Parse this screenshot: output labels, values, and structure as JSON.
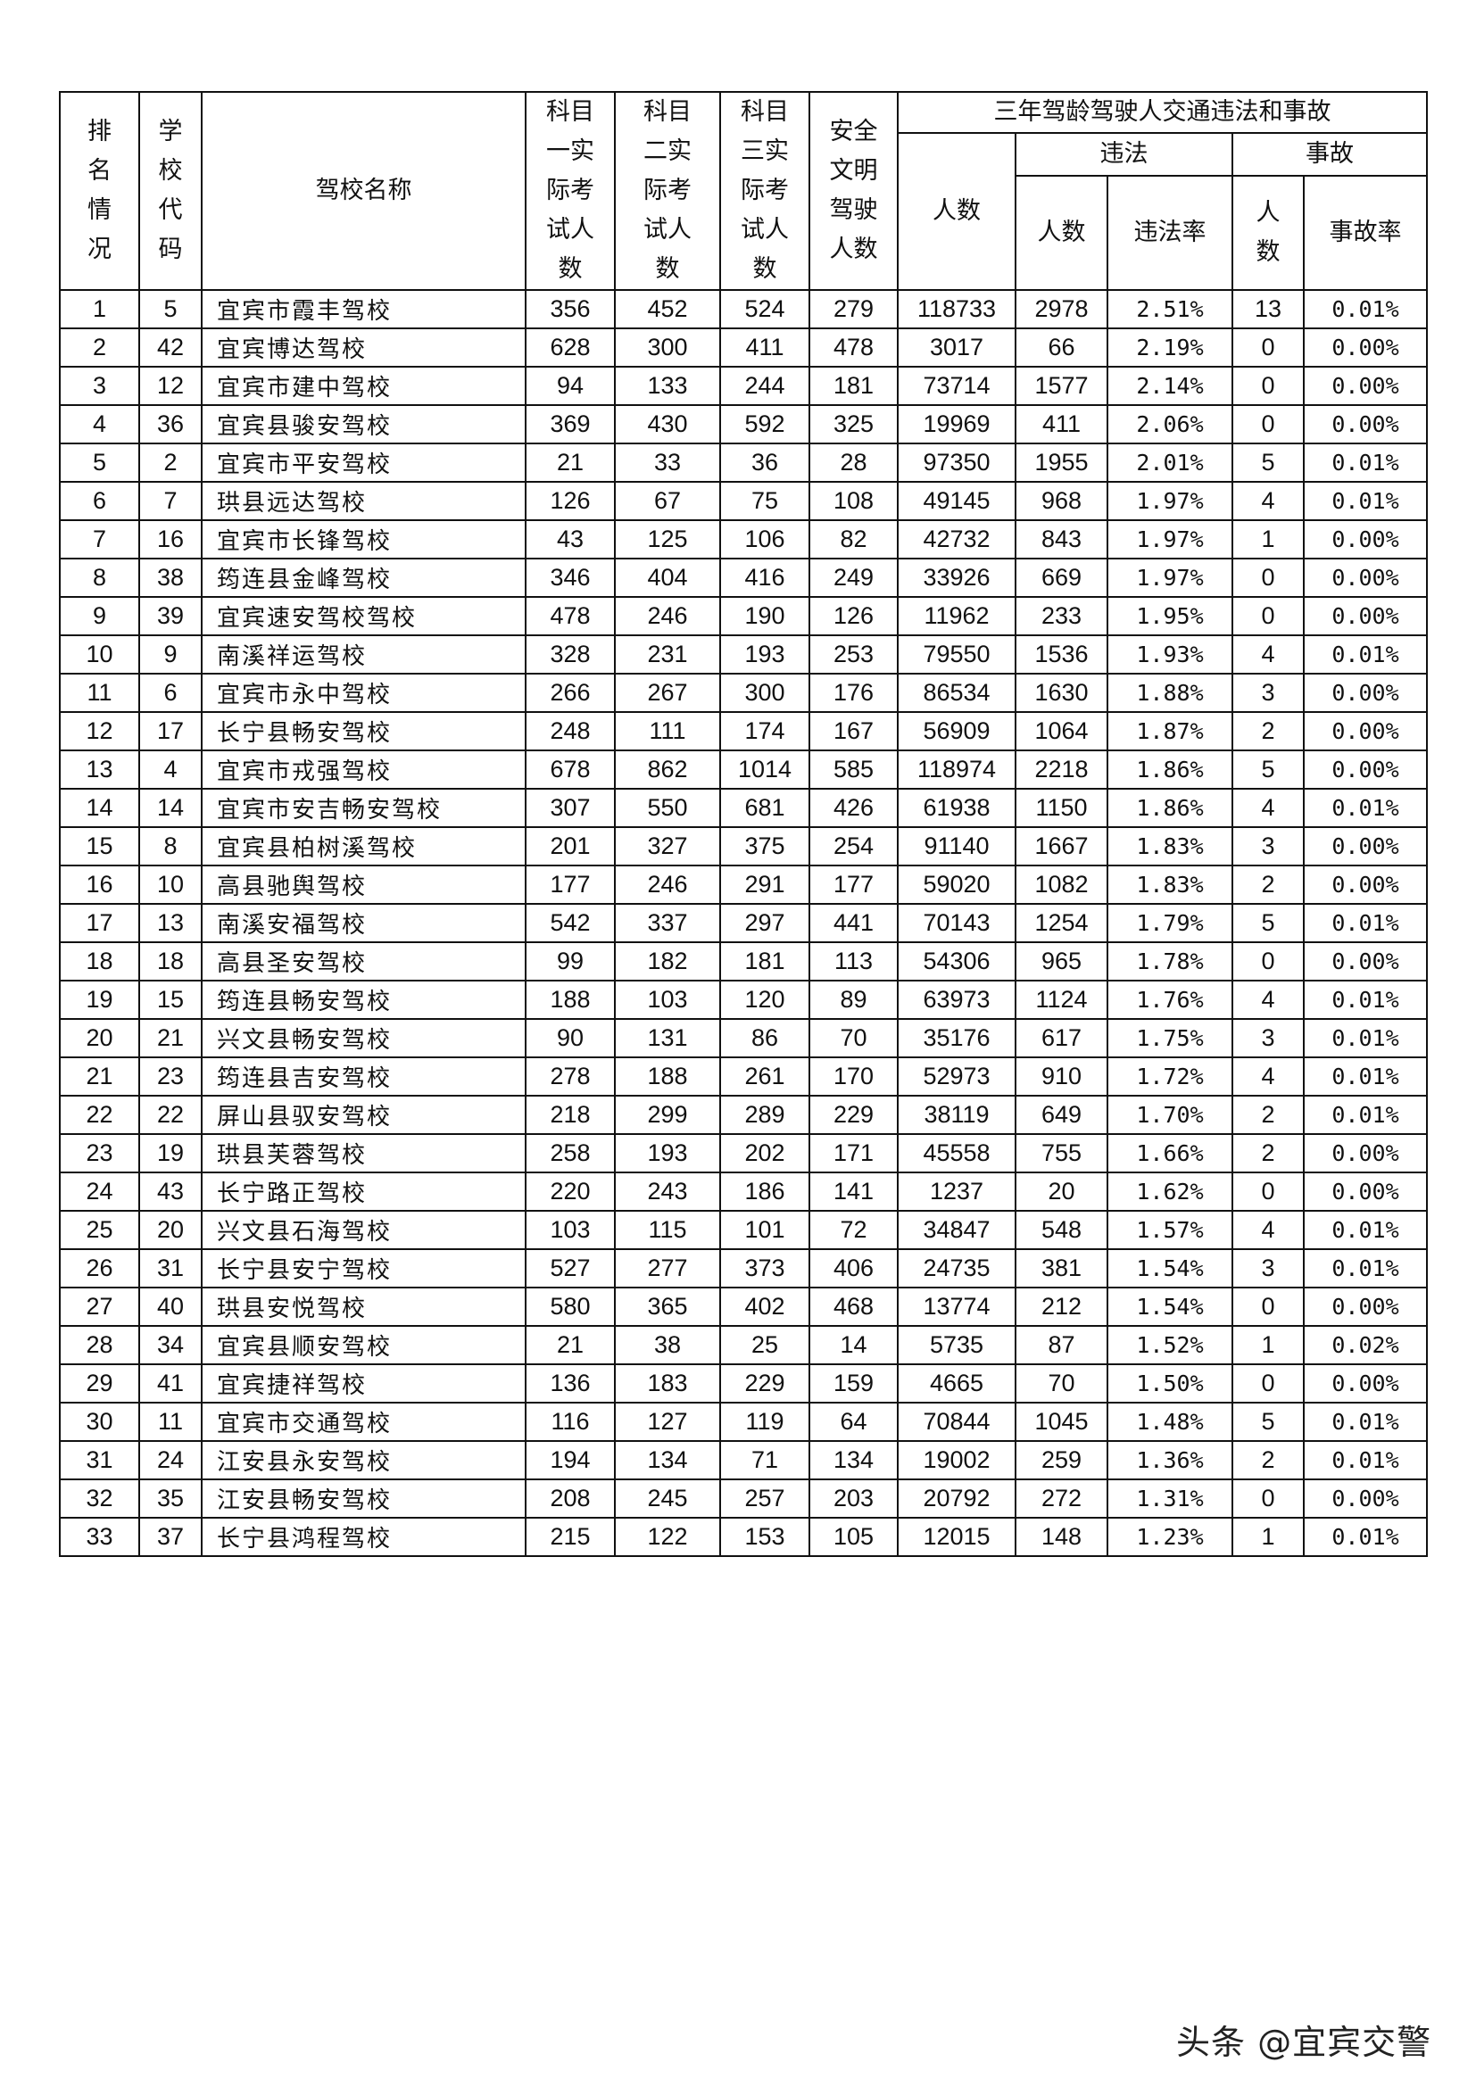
{
  "headers": {
    "rank": "排名情况",
    "code": "学校代码",
    "name": "驾校名称",
    "subject1": "科目一实际考试人数",
    "subject2": "科目二实际考试人数",
    "subject3": "科目三实际考试人数",
    "safe": "安全文明驾驶人数",
    "group": "三年驾龄驾驶人交通违法和事故",
    "people": "人数",
    "violation": "违法",
    "accident": "事故",
    "violation_count": "人数",
    "violation_rate": "违法率",
    "accident_count": "人数",
    "accident_rate": "事故率"
  },
  "rows": [
    [
      "1",
      "5",
      "宜宾市霞丰驾校",
      "356",
      "452",
      "524",
      "279",
      "118733",
      "2978",
      "2.51%",
      "13",
      "0.01%"
    ],
    [
      "2",
      "42",
      "宜宾博达驾校",
      "628",
      "300",
      "411",
      "478",
      "3017",
      "66",
      "2.19%",
      "0",
      "0.00%"
    ],
    [
      "3",
      "12",
      "宜宾市建中驾校",
      "94",
      "133",
      "244",
      "181",
      "73714",
      "1577",
      "2.14%",
      "0",
      "0.00%"
    ],
    [
      "4",
      "36",
      "宜宾县骏安驾校",
      "369",
      "430",
      "592",
      "325",
      "19969",
      "411",
      "2.06%",
      "0",
      "0.00%"
    ],
    [
      "5",
      "2",
      "宜宾市平安驾校",
      "21",
      "33",
      "36",
      "28",
      "97350",
      "1955",
      "2.01%",
      "5",
      "0.01%"
    ],
    [
      "6",
      "7",
      "珙县远达驾校",
      "126",
      "67",
      "75",
      "108",
      "49145",
      "968",
      "1.97%",
      "4",
      "0.01%"
    ],
    [
      "7",
      "16",
      "宜宾市长锋驾校",
      "43",
      "125",
      "106",
      "82",
      "42732",
      "843",
      "1.97%",
      "1",
      "0.00%"
    ],
    [
      "8",
      "38",
      "筠连县金峰驾校",
      "346",
      "404",
      "416",
      "249",
      "33926",
      "669",
      "1.97%",
      "0",
      "0.00%"
    ],
    [
      "9",
      "39",
      "宜宾速安驾校驾校",
      "478",
      "246",
      "190",
      "126",
      "11962",
      "233",
      "1.95%",
      "0",
      "0.00%"
    ],
    [
      "10",
      "9",
      "南溪祥运驾校",
      "328",
      "231",
      "193",
      "253",
      "79550",
      "1536",
      "1.93%",
      "4",
      "0.01%"
    ],
    [
      "11",
      "6",
      "宜宾市永中驾校",
      "266",
      "267",
      "300",
      "176",
      "86534",
      "1630",
      "1.88%",
      "3",
      "0.00%"
    ],
    [
      "12",
      "17",
      "长宁县畅安驾校",
      "248",
      "111",
      "174",
      "167",
      "56909",
      "1064",
      "1.87%",
      "2",
      "0.00%"
    ],
    [
      "13",
      "4",
      "宜宾市戎强驾校",
      "678",
      "862",
      "1014",
      "585",
      "118974",
      "2218",
      "1.86%",
      "5",
      "0.00%"
    ],
    [
      "14",
      "14",
      "宜宾市安吉畅安驾校",
      "307",
      "550",
      "681",
      "426",
      "61938",
      "1150",
      "1.86%",
      "4",
      "0.01%"
    ],
    [
      "15",
      "8",
      "宜宾县柏树溪驾校",
      "201",
      "327",
      "375",
      "254",
      "91140",
      "1667",
      "1.83%",
      "3",
      "0.00%"
    ],
    [
      "16",
      "10",
      "高县驰舆驾校",
      "177",
      "246",
      "291",
      "177",
      "59020",
      "1082",
      "1.83%",
      "2",
      "0.00%"
    ],
    [
      "17",
      "13",
      "南溪安福驾校",
      "542",
      "337",
      "297",
      "441",
      "70143",
      "1254",
      "1.79%",
      "5",
      "0.01%"
    ],
    [
      "18",
      "18",
      "高县圣安驾校",
      "99",
      "182",
      "181",
      "113",
      "54306",
      "965",
      "1.78%",
      "0",
      "0.00%"
    ],
    [
      "19",
      "15",
      "筠连县畅安驾校",
      "188",
      "103",
      "120",
      "89",
      "63973",
      "1124",
      "1.76%",
      "4",
      "0.01%"
    ],
    [
      "20",
      "21",
      "兴文县畅安驾校",
      "90",
      "131",
      "86",
      "70",
      "35176",
      "617",
      "1.75%",
      "3",
      "0.01%"
    ],
    [
      "21",
      "23",
      "筠连县吉安驾校",
      "278",
      "188",
      "261",
      "170",
      "52973",
      "910",
      "1.72%",
      "4",
      "0.01%"
    ],
    [
      "22",
      "22",
      "屏山县驭安驾校",
      "218",
      "299",
      "289",
      "229",
      "38119",
      "649",
      "1.70%",
      "2",
      "0.01%"
    ],
    [
      "23",
      "19",
      "珙县芙蓉驾校",
      "258",
      "193",
      "202",
      "171",
      "45558",
      "755",
      "1.66%",
      "2",
      "0.00%"
    ],
    [
      "24",
      "43",
      "长宁路正驾校",
      "220",
      "243",
      "186",
      "141",
      "1237",
      "20",
      "1.62%",
      "0",
      "0.00%"
    ],
    [
      "25",
      "20",
      "兴文县石海驾校",
      "103",
      "115",
      "101",
      "72",
      "34847",
      "548",
      "1.57%",
      "4",
      "0.01%"
    ],
    [
      "26",
      "31",
      "长宁县安宁驾校",
      "527",
      "277",
      "373",
      "406",
      "24735",
      "381",
      "1.54%",
      "3",
      "0.01%"
    ],
    [
      "27",
      "40",
      "珙县安悦驾校",
      "580",
      "365",
      "402",
      "468",
      "13774",
      "212",
      "1.54%",
      "0",
      "0.00%"
    ],
    [
      "28",
      "34",
      "宜宾县顺安驾校",
      "21",
      "38",
      "25",
      "14",
      "5735",
      "87",
      "1.52%",
      "1",
      "0.02%"
    ],
    [
      "29",
      "41",
      "宜宾捷祥驾校",
      "136",
      "183",
      "229",
      "159",
      "4665",
      "70",
      "1.50%",
      "0",
      "0.00%"
    ],
    [
      "30",
      "11",
      "宜宾市交通驾校",
      "116",
      "127",
      "119",
      "64",
      "70844",
      "1045",
      "1.48%",
      "5",
      "0.01%"
    ],
    [
      "31",
      "24",
      "江安县永安驾校",
      "194",
      "134",
      "71",
      "134",
      "19002",
      "259",
      "1.36%",
      "2",
      "0.01%"
    ],
    [
      "32",
      "35",
      "江安县畅安驾校",
      "208",
      "245",
      "257",
      "203",
      "20792",
      "272",
      "1.31%",
      "0",
      "0.00%"
    ],
    [
      "33",
      "37",
      "长宁县鸿程驾校",
      "215",
      "122",
      "153",
      "105",
      "12015",
      "148",
      "1.23%",
      "1",
      "0.01%"
    ]
  ],
  "watermark": "头条 @宜宾交警"
}
